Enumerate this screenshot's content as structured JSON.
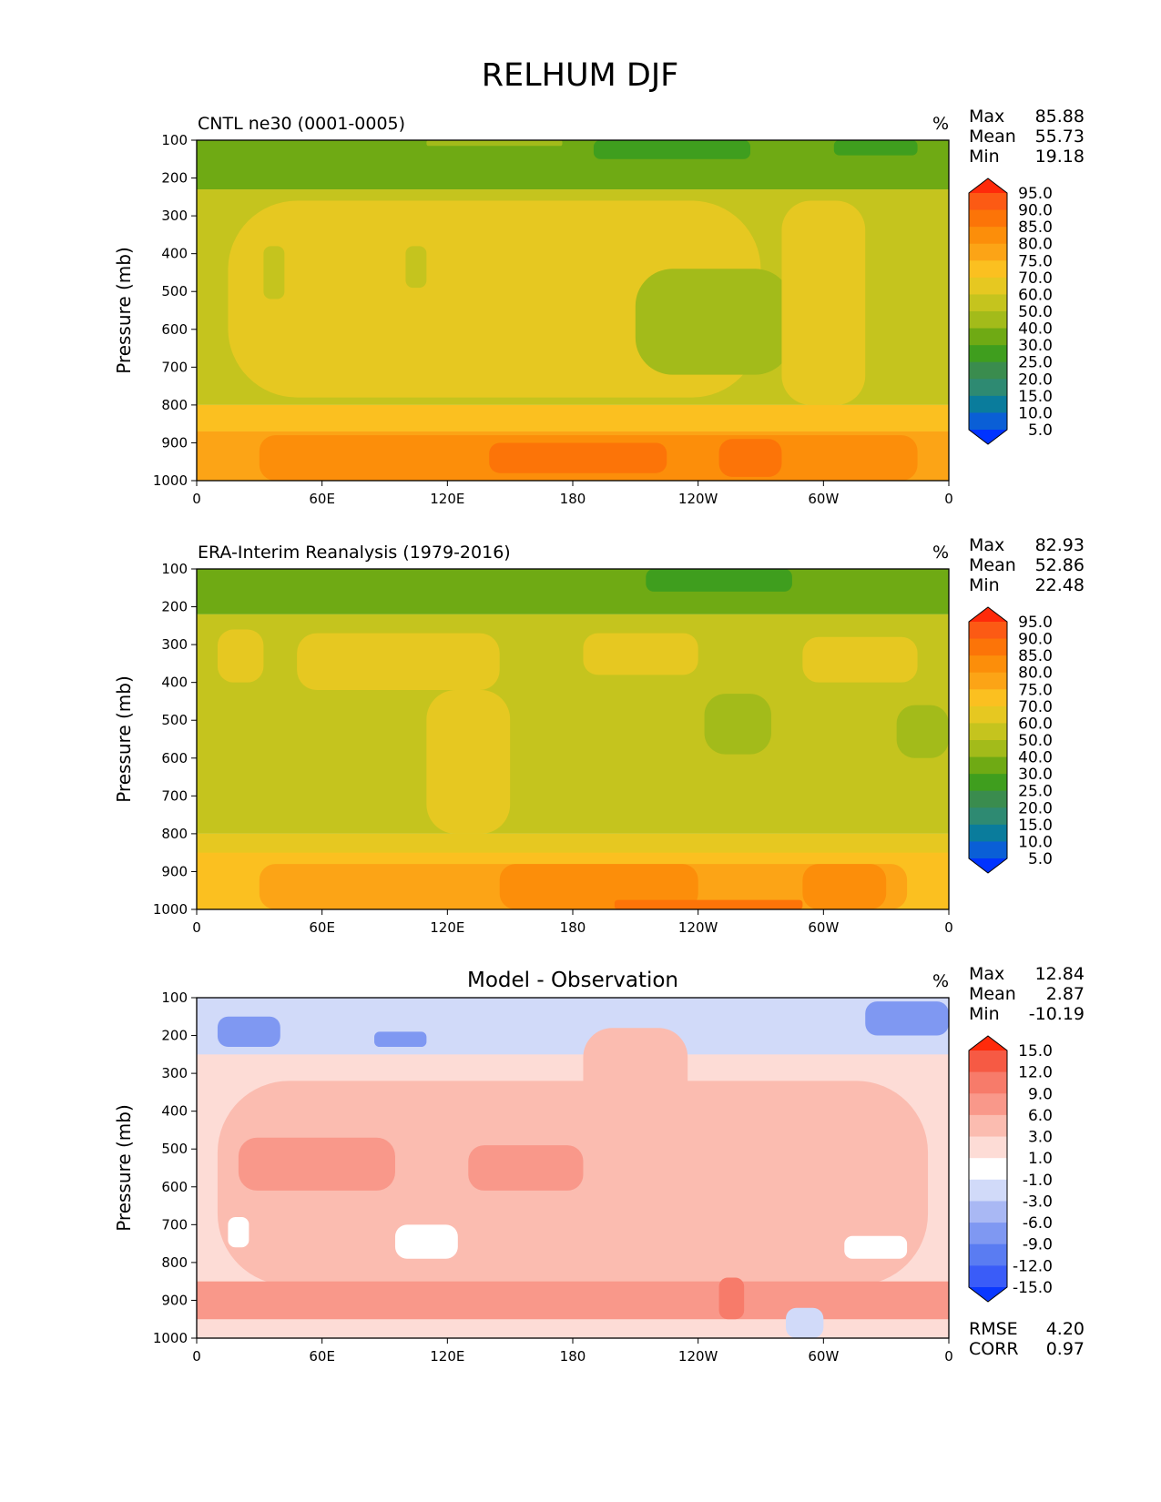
{
  "figure_title": "RELHUM DJF",
  "chart_data": [
    {
      "type": "heatmap",
      "title": "CNTL ne30 (0001-0005)",
      "units": "%",
      "ylabel": "Pressure (mb)",
      "xlabel": "",
      "x_ticks": [
        "0",
        "60E",
        "120E",
        "180",
        "120W",
        "60W",
        "0"
      ],
      "x_range": [
        0,
        360
      ],
      "y_ticks": [
        "100",
        "200",
        "300",
        "400",
        "500",
        "600",
        "700",
        "800",
        "900",
        "1000"
      ],
      "y_range": [
        100,
        1000
      ],
      "stats": {
        "max_label": "Max",
        "max": "85.88",
        "mean_label": "Mean",
        "mean": "55.73",
        "min_label": "Min",
        "min": "19.18"
      },
      "colorbar": {
        "levels": [
          "5.0",
          "10.0",
          "15.0",
          "20.0",
          "25.0",
          "30.0",
          "40.0",
          "50.0",
          "60.0",
          "70.0",
          "75.0",
          "80.0",
          "85.0",
          "90.0",
          "95.0"
        ],
        "colors": [
          "#0033ff",
          "#0a5fd6",
          "#0a7c9c",
          "#2e8a72",
          "#3a8c4e",
          "#3f9e1e",
          "#6faa14",
          "#a3bb1a",
          "#c5c41e",
          "#e6c821",
          "#fbc020",
          "#fca416",
          "#fc8e0a",
          "#fc7408",
          "#fc5a14",
          "#ff2a0a"
        ],
        "extend": "both"
      },
      "regions": [
        {
          "lat_from": 0,
          "lat_to": 360,
          "p_from": 100,
          "p_to": 230,
          "value": 30
        },
        {
          "lat_from": 110,
          "lat_to": 175,
          "p_from": 100,
          "p_to": 115,
          "value": 40
        },
        {
          "lat_from": 190,
          "lat_to": 265,
          "p_from": 100,
          "p_to": 150,
          "value": 25
        },
        {
          "lat_from": 305,
          "lat_to": 345,
          "p_from": 100,
          "p_to": 140,
          "value": 25
        },
        {
          "lat_from": 0,
          "lat_to": 360,
          "p_from": 230,
          "p_to": 800,
          "value": 50
        },
        {
          "lat_from": 15,
          "lat_to": 270,
          "p_from": 260,
          "p_to": 780,
          "value": 60
        },
        {
          "lat_from": 32,
          "lat_to": 42,
          "p_from": 380,
          "p_to": 520,
          "value": 50
        },
        {
          "lat_from": 100,
          "lat_to": 110,
          "p_from": 380,
          "p_to": 490,
          "value": 50
        },
        {
          "lat_from": 210,
          "lat_to": 285,
          "p_from": 440,
          "p_to": 720,
          "value": 40
        },
        {
          "lat_from": 280,
          "lat_to": 320,
          "p_from": 260,
          "p_to": 800,
          "value": 60
        },
        {
          "lat_from": 0,
          "lat_to": 360,
          "p_from": 800,
          "p_to": 870,
          "value": 70
        },
        {
          "lat_from": 0,
          "lat_to": 360,
          "p_from": 870,
          "p_to": 1000,
          "value": 75
        },
        {
          "lat_from": 30,
          "lat_to": 345,
          "p_from": 880,
          "p_to": 1000,
          "value": 80
        },
        {
          "lat_from": 140,
          "lat_to": 225,
          "p_from": 900,
          "p_to": 980,
          "value": 85
        },
        {
          "lat_from": 250,
          "lat_to": 280,
          "p_from": 890,
          "p_to": 990,
          "value": 85
        }
      ]
    },
    {
      "type": "heatmap",
      "title": "ERA-Interim Reanalysis (1979-2016)",
      "units": "%",
      "ylabel": "Pressure (mb)",
      "xlabel": "",
      "x_ticks": [
        "0",
        "60E",
        "120E",
        "180",
        "120W",
        "60W",
        "0"
      ],
      "x_range": [
        0,
        360
      ],
      "y_ticks": [
        "100",
        "200",
        "300",
        "400",
        "500",
        "600",
        "700",
        "800",
        "900",
        "1000"
      ],
      "y_range": [
        100,
        1000
      ],
      "stats": {
        "max_label": "Max",
        "max": "82.93",
        "mean_label": "Mean",
        "mean": "52.86",
        "min_label": "Min",
        "min": "22.48"
      },
      "colorbar": {
        "levels": [
          "5.0",
          "10.0",
          "15.0",
          "20.0",
          "25.0",
          "30.0",
          "40.0",
          "50.0",
          "60.0",
          "70.0",
          "75.0",
          "80.0",
          "85.0",
          "90.0",
          "95.0"
        ],
        "colors": [
          "#0033ff",
          "#0a5fd6",
          "#0a7c9c",
          "#2e8a72",
          "#3a8c4e",
          "#3f9e1e",
          "#6faa14",
          "#a3bb1a",
          "#c5c41e",
          "#e6c821",
          "#fbc020",
          "#fca416",
          "#fc8e0a",
          "#fc7408",
          "#fc5a14",
          "#ff2a0a"
        ],
        "extend": "both"
      },
      "regions": [
        {
          "lat_from": 0,
          "lat_to": 360,
          "p_from": 100,
          "p_to": 220,
          "value": 30
        },
        {
          "lat_from": 215,
          "lat_to": 285,
          "p_from": 100,
          "p_to": 160,
          "value": 25
        },
        {
          "lat_from": 0,
          "lat_to": 360,
          "p_from": 220,
          "p_to": 800,
          "value": 50
        },
        {
          "lat_from": 10,
          "lat_to": 32,
          "p_from": 260,
          "p_to": 400,
          "value": 60
        },
        {
          "lat_from": 48,
          "lat_to": 145,
          "p_from": 270,
          "p_to": 420,
          "value": 60
        },
        {
          "lat_from": 185,
          "lat_to": 240,
          "p_from": 270,
          "p_to": 380,
          "value": 60
        },
        {
          "lat_from": 290,
          "lat_to": 345,
          "p_from": 280,
          "p_to": 400,
          "value": 60
        },
        {
          "lat_from": 110,
          "lat_to": 150,
          "p_from": 420,
          "p_to": 800,
          "value": 60
        },
        {
          "lat_from": 243,
          "lat_to": 275,
          "p_from": 430,
          "p_to": 590,
          "value": 40
        },
        {
          "lat_from": 335,
          "lat_to": 360,
          "p_from": 460,
          "p_to": 600,
          "value": 40
        },
        {
          "lat_from": 0,
          "lat_to": 360,
          "p_from": 800,
          "p_to": 900,
          "value": 60
        },
        {
          "lat_from": 0,
          "lat_to": 360,
          "p_from": 850,
          "p_to": 1000,
          "value": 70
        },
        {
          "lat_from": 30,
          "lat_to": 340,
          "p_from": 880,
          "p_to": 1000,
          "value": 75
        },
        {
          "lat_from": 145,
          "lat_to": 240,
          "p_from": 880,
          "p_to": 1000,
          "value": 80
        },
        {
          "lat_from": 290,
          "lat_to": 330,
          "p_from": 880,
          "p_to": 1000,
          "value": 80
        },
        {
          "lat_from": 200,
          "lat_to": 290,
          "p_from": 975,
          "p_to": 1000,
          "value": 85
        }
      ]
    },
    {
      "type": "heatmap",
      "title": "Model - Observation",
      "units": "%",
      "ylabel": "Pressure (mb)",
      "xlabel": "",
      "x_ticks": [
        "0",
        "60E",
        "120E",
        "180",
        "120W",
        "60W",
        "0"
      ],
      "x_range": [
        0,
        360
      ],
      "y_ticks": [
        "100",
        "200",
        "300",
        "400",
        "500",
        "600",
        "700",
        "800",
        "900",
        "1000"
      ],
      "y_range": [
        100,
        1000
      ],
      "stats": {
        "max_label": "Max",
        "max": "12.84",
        "mean_label": "Mean",
        "mean": "2.87",
        "min_label": "Min",
        "min": "-10.19"
      },
      "extra_stats": {
        "rmse_label": "RMSE",
        "rmse": "4.20",
        "corr_label": "CORR",
        "corr": "0.97"
      },
      "colorbar": {
        "levels": [
          "-15.0",
          "-12.0",
          "-9.0",
          "-6.0",
          "-3.0",
          "-1.0",
          "1.0",
          "3.0",
          "6.0",
          "9.0",
          "12.0",
          "15.0"
        ],
        "colors": [
          "#0a38ff",
          "#3a5cf8",
          "#5a7cf2",
          "#7f98f2",
          "#a9b8f4",
          "#d1daf9",
          "#ffffff",
          "#fddcd6",
          "#fbbcb0",
          "#f9988a",
          "#f77b6a",
          "#f65a44",
          "#ff2a0a"
        ],
        "extend": "both"
      },
      "regions": [
        {
          "lat_from": 0,
          "lat_to": 360,
          "p_from": 100,
          "p_to": 300,
          "value": -2
        },
        {
          "lat_from": 10,
          "lat_to": 40,
          "p_from": 150,
          "p_to": 230,
          "value": -8
        },
        {
          "lat_from": 85,
          "lat_to": 110,
          "p_from": 190,
          "p_to": 230,
          "value": -8
        },
        {
          "lat_from": 320,
          "lat_to": 360,
          "p_from": 110,
          "p_to": 200,
          "value": -7
        },
        {
          "lat_from": 0,
          "lat_to": 360,
          "p_from": 250,
          "p_to": 1000,
          "value": 2
        },
        {
          "lat_from": 10,
          "lat_to": 350,
          "p_from": 320,
          "p_to": 860,
          "value": 4
        },
        {
          "lat_from": 185,
          "lat_to": 235,
          "p_from": 180,
          "p_to": 400,
          "value": 4
        },
        {
          "lat_from": 20,
          "lat_to": 95,
          "p_from": 470,
          "p_to": 610,
          "value": 7
        },
        {
          "lat_from": 130,
          "lat_to": 185,
          "p_from": 490,
          "p_to": 610,
          "value": 7
        },
        {
          "lat_from": 15,
          "lat_to": 25,
          "p_from": 680,
          "p_to": 760,
          "value": 0
        },
        {
          "lat_from": 95,
          "lat_to": 125,
          "p_from": 700,
          "p_to": 790,
          "value": 0
        },
        {
          "lat_from": 310,
          "lat_to": 340,
          "p_from": 730,
          "p_to": 790,
          "value": 0
        },
        {
          "lat_from": 0,
          "lat_to": 360,
          "p_from": 850,
          "p_to": 950,
          "value": 7
        },
        {
          "lat_from": 250,
          "lat_to": 262,
          "p_from": 840,
          "p_to": 950,
          "value": 10
        },
        {
          "lat_from": 282,
          "lat_to": 300,
          "p_from": 920,
          "p_to": 1000,
          "value": -2
        }
      ]
    }
  ]
}
